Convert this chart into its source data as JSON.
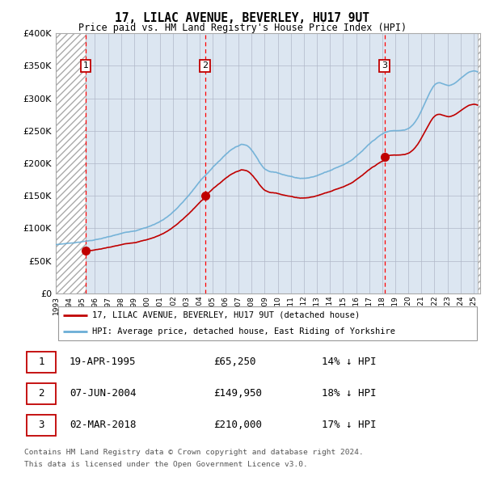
{
  "title": "17, LILAC AVENUE, BEVERLEY, HU17 9UT",
  "subtitle": "Price paid vs. HM Land Registry's House Price Index (HPI)",
  "property_label": "17, LILAC AVENUE, BEVERLEY, HU17 9UT (detached house)",
  "hpi_label": "HPI: Average price, detached house, East Riding of Yorkshire",
  "footnote1": "Contains HM Land Registry data © Crown copyright and database right 2024.",
  "footnote2": "This data is licensed under the Open Government Licence v3.0.",
  "sales": [
    {
      "num": 1,
      "date_str": "19-APR-1995",
      "date_x": 1995.29,
      "price": 65250,
      "hpi_pct": "14% ↓ HPI"
    },
    {
      "num": 2,
      "date_str": "07-JUN-2004",
      "date_x": 2004.43,
      "price": 149950,
      "hpi_pct": "18% ↓ HPI"
    },
    {
      "num": 3,
      "date_str": "02-MAR-2018",
      "date_x": 2018.17,
      "price": 210000,
      "hpi_pct": "17% ↓ HPI"
    }
  ],
  "hpi_color": "#6baed6",
  "price_color": "#c00000",
  "vline_color": "#ff0000",
  "bg_color": "#dce6f1",
  "grid_color": "#b0b8c8",
  "ylim": [
    0,
    400000
  ],
  "yticks": [
    0,
    50000,
    100000,
    150000,
    200000,
    250000,
    300000,
    350000,
    400000
  ],
  "xlim_start": 1993.0,
  "xlim_end": 2025.5,
  "xtick_years": [
    1993,
    1994,
    1995,
    1996,
    1997,
    1998,
    1999,
    2000,
    2001,
    2002,
    2003,
    2004,
    2005,
    2006,
    2007,
    2008,
    2009,
    2010,
    2011,
    2012,
    2013,
    2014,
    2015,
    2016,
    2017,
    2018,
    2019,
    2020,
    2021,
    2022,
    2023,
    2024,
    2025
  ]
}
